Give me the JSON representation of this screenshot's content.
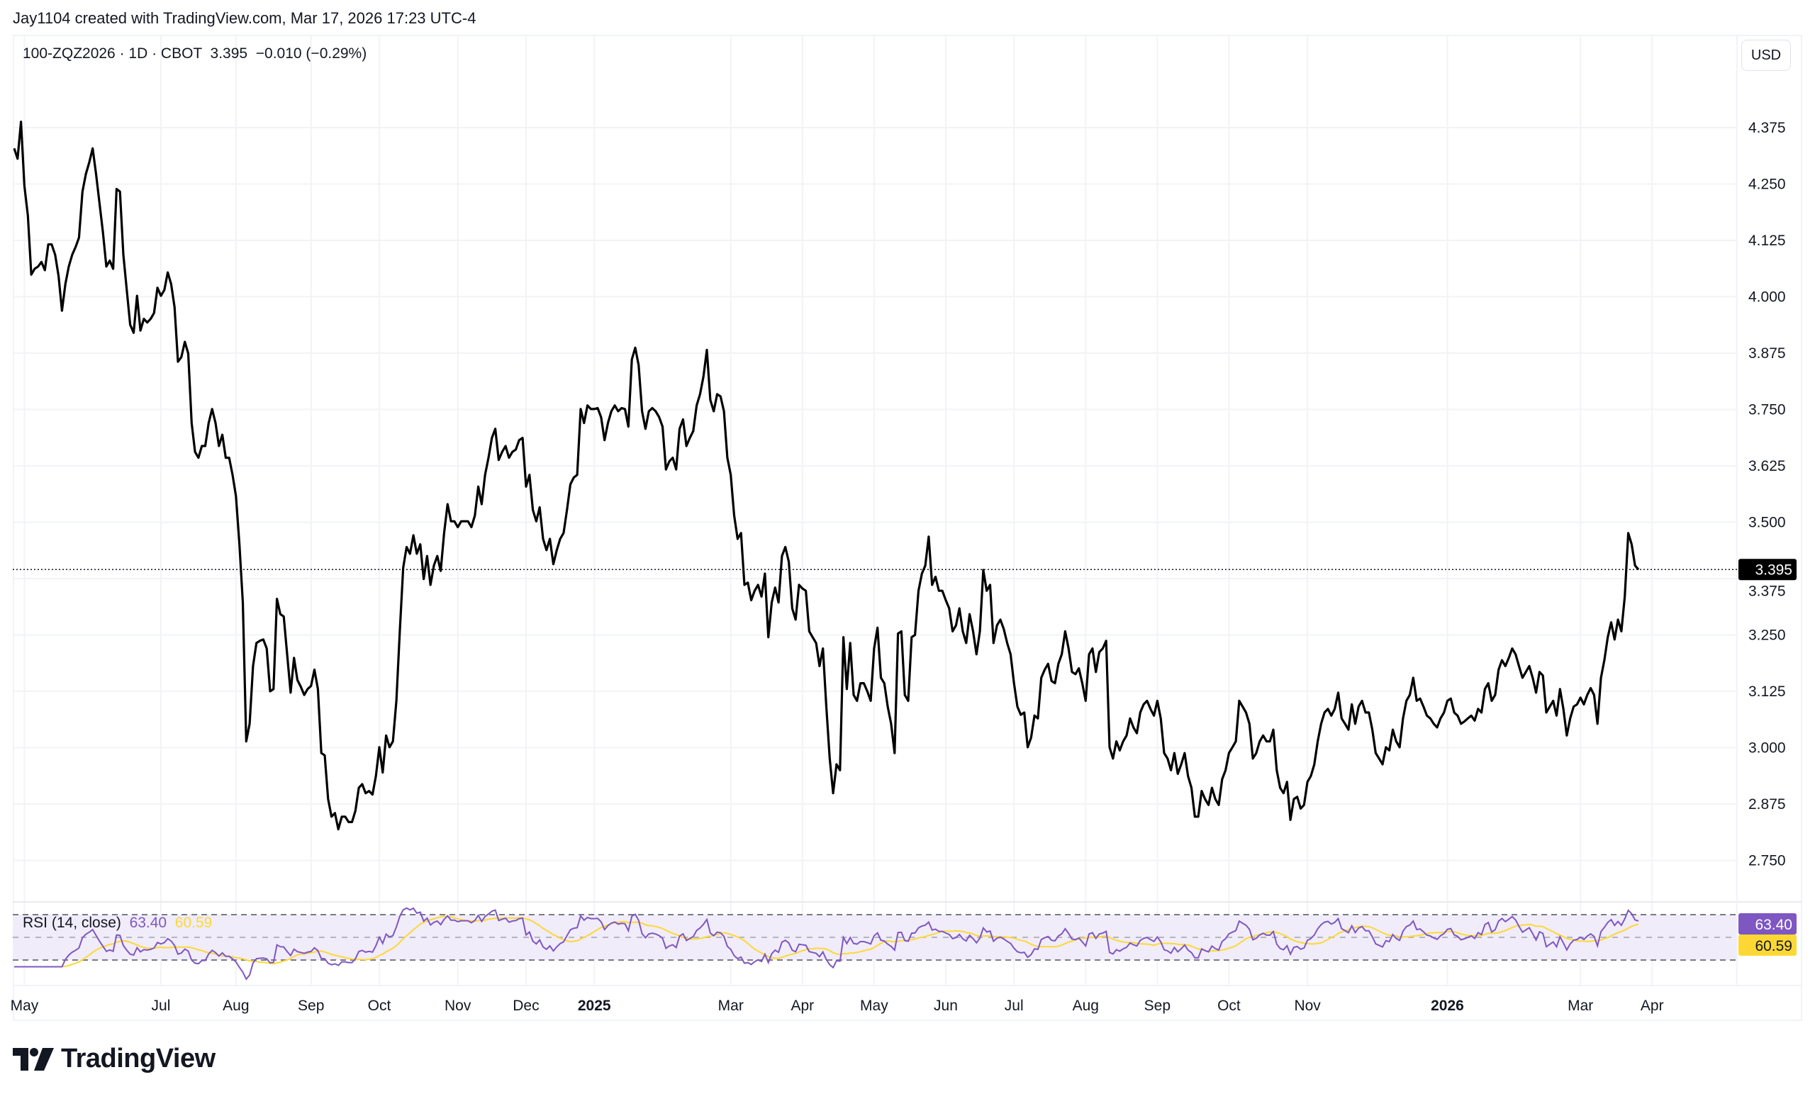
{
  "attribution": "Jay1104 created with TradingView.com, Mar 17, 2026 17:23 UTC-4",
  "legend": {
    "symbol": "100-ZQZ2026 · 1D · CBOT",
    "price": "3.395",
    "change": "−0.010 (−0.29%)"
  },
  "currency_button": "USD",
  "logo_text": "TradingView",
  "colors": {
    "price_line": "#000000",
    "rsi": "#7e57c2",
    "rsi_ma": "#fdd835",
    "rsi_band": "#f0ecf9",
    "grid": "#f2f3f6"
  },
  "chart_data": {
    "type": "line",
    "title": "100-ZQZ2026 · 1D · CBOT",
    "ylabel": "USD",
    "ylim": [
      2.7,
      4.42
    ],
    "grid": true,
    "y_ticks": [
      "4.375",
      "4.250",
      "4.125",
      "4.000",
      "3.875",
      "3.750",
      "3.625",
      "3.500",
      "3.375",
      "3.250",
      "3.125",
      "3.000",
      "2.875",
      "2.750"
    ],
    "last_price_label": "3.395",
    "last_price": 3.395,
    "x_ticks": [
      {
        "label": "May",
        "bar": 3
      },
      {
        "label": "Jul",
        "bar": 43
      },
      {
        "label": "Aug",
        "bar": 65
      },
      {
        "label": "Sep",
        "bar": 87
      },
      {
        "label": "Oct",
        "bar": 107
      },
      {
        "label": "Nov",
        "bar": 130
      },
      {
        "label": "Dec",
        "bar": 150
      },
      {
        "label": "2025",
        "bar": 170,
        "bold": true
      },
      {
        "label": "Mar",
        "bar": 210
      },
      {
        "label": "Apr",
        "bar": 231
      },
      {
        "label": "May",
        "bar": 252
      },
      {
        "label": "Jun",
        "bar": 273
      },
      {
        "label": "Jul",
        "bar": 293
      },
      {
        "label": "Aug",
        "bar": 314
      },
      {
        "label": "Sep",
        "bar": 335
      },
      {
        "label": "Oct",
        "bar": 356
      },
      {
        "label": "Nov",
        "bar": 379
      },
      {
        "label": "2026",
        "bar": 420,
        "bold": true
      },
      {
        "label": "Mar",
        "bar": 459
      },
      {
        "label": "Apr",
        "bar": 480
      }
    ],
    "series": [
      {
        "name": "Close",
        "values": [
          4.329,
          4.306,
          4.388,
          4.246,
          4.18,
          4.049,
          4.062,
          4.067,
          4.077,
          4.059,
          4.116,
          4.116,
          4.093,
          4.046,
          3.969,
          4.028,
          4.067,
          4.093,
          4.11,
          4.131,
          4.233,
          4.272,
          4.298,
          4.329,
          4.272,
          4.208,
          4.144,
          4.067,
          4.08,
          4.062,
          4.239,
          4.233,
          4.093,
          4.015,
          3.938,
          3.92,
          4.002,
          3.925,
          3.951,
          3.943,
          3.951,
          3.964,
          4.02,
          4.002,
          4.015,
          4.054,
          4.028,
          3.977,
          3.856,
          3.866,
          3.9,
          3.874,
          3.72,
          3.656,
          3.643,
          3.669,
          3.669,
          3.72,
          3.751,
          3.72,
          3.669,
          3.694,
          3.643,
          3.643,
          3.605,
          3.558,
          3.451,
          3.322,
          3.014,
          3.053,
          3.181,
          3.232,
          3.237,
          3.24,
          3.22,
          3.125,
          3.13,
          3.33,
          3.296,
          3.291,
          3.207,
          3.122,
          3.199,
          3.15,
          3.135,
          3.117,
          3.13,
          3.137,
          3.173,
          3.13,
          2.988,
          2.983,
          2.886,
          2.847,
          2.855,
          2.819,
          2.847,
          2.847,
          2.835,
          2.835,
          2.86,
          2.911,
          2.919,
          2.899,
          2.904,
          2.896,
          2.937,
          3.001,
          2.945,
          3.027,
          3.001,
          3.014,
          3.104,
          3.258,
          3.399,
          3.445,
          3.43,
          3.471,
          3.43,
          3.451,
          3.374,
          3.425,
          3.361,
          3.404,
          3.425,
          3.392,
          3.476,
          3.54,
          3.502,
          3.502,
          3.489,
          3.502,
          3.502,
          3.502,
          3.489,
          3.515,
          3.579,
          3.54,
          3.605,
          3.643,
          3.687,
          3.707,
          3.638,
          3.656,
          3.669,
          3.643,
          3.656,
          3.661,
          3.682,
          3.687,
          3.579,
          3.605,
          3.527,
          3.502,
          3.533,
          3.463,
          3.438,
          3.463,
          3.407,
          3.438,
          3.463,
          3.476,
          3.527,
          3.584,
          3.599,
          3.605,
          3.751,
          3.72,
          3.759,
          3.751,
          3.751,
          3.753,
          3.733,
          3.682,
          3.72,
          3.746,
          3.759,
          3.746,
          3.753,
          3.751,
          3.712,
          3.861,
          3.887,
          3.848,
          3.746,
          3.707,
          3.746,
          3.753,
          3.746,
          3.733,
          3.712,
          3.617,
          3.635,
          3.643,
          3.617,
          3.707,
          3.728,
          3.669,
          3.687,
          3.702,
          3.759,
          3.784,
          3.823,
          3.882,
          3.771,
          3.746,
          3.784,
          3.779,
          3.746,
          3.643,
          3.605,
          3.515,
          3.463,
          3.476,
          3.361,
          3.366,
          3.327,
          3.348,
          3.361,
          3.335,
          3.386,
          3.245,
          3.322,
          3.355,
          3.322,
          3.425,
          3.445,
          3.412,
          3.309,
          3.284,
          3.361,
          3.353,
          3.348,
          3.258,
          3.245,
          3.232,
          3.181,
          3.22,
          3.091,
          2.976,
          2.899,
          2.963,
          2.95,
          3.245,
          3.13,
          3.232,
          3.117,
          3.104,
          3.143,
          3.143,
          3.125,
          3.104,
          3.22,
          3.266,
          3.155,
          3.143,
          3.091,
          3.053,
          2.988,
          3.253,
          3.258,
          3.117,
          3.104,
          3.245,
          3.25,
          3.348,
          3.386,
          3.404,
          3.468,
          3.361,
          3.379,
          3.348,
          3.348,
          3.327,
          3.309,
          3.258,
          3.271,
          3.309,
          3.258,
          3.232,
          3.296,
          3.258,
          3.207,
          3.258,
          3.394,
          3.348,
          3.361,
          3.232,
          3.271,
          3.284,
          3.263,
          3.232,
          3.207,
          3.143,
          3.091,
          3.073,
          3.078,
          3.001,
          3.022,
          3.071,
          3.065,
          3.155,
          3.173,
          3.186,
          3.148,
          3.143,
          3.186,
          3.207,
          3.258,
          3.22,
          3.168,
          3.163,
          3.176,
          3.143,
          3.104,
          3.207,
          3.22,
          3.168,
          3.212,
          3.22,
          3.237,
          3.001,
          2.976,
          3.014,
          2.994,
          3.014,
          3.027,
          3.065,
          3.045,
          3.032,
          3.078,
          3.096,
          3.104,
          3.086,
          3.071,
          3.104,
          3.065,
          2.988,
          2.976,
          2.95,
          2.988,
          2.942,
          2.963,
          2.988,
          2.937,
          2.911,
          2.847,
          2.847,
          2.904,
          2.886,
          2.873,
          2.911,
          2.886,
          2.873,
          2.93,
          2.95,
          2.988,
          3.001,
          3.014,
          3.104,
          3.091,
          3.078,
          3.053,
          2.976,
          2.988,
          3.014,
          3.027,
          3.014,
          3.014,
          3.04,
          2.95,
          2.911,
          2.899,
          2.924,
          2.84,
          2.886,
          2.891,
          2.865,
          2.873,
          2.924,
          2.937,
          2.963,
          3.014,
          3.053,
          3.078,
          3.086,
          3.071,
          3.086,
          3.122,
          3.065,
          3.053,
          3.04,
          3.096,
          3.053,
          3.091,
          3.104,
          3.078,
          3.078,
          3.04,
          2.988,
          2.976,
          2.963,
          3.001,
          2.994,
          3.04,
          3.014,
          3.001,
          3.065,
          3.104,
          3.117,
          3.155,
          3.104,
          3.109,
          3.091,
          3.071,
          3.065,
          3.053,
          3.045,
          3.065,
          3.078,
          3.104,
          3.109,
          3.078,
          3.071,
          3.053,
          3.058,
          3.065,
          3.071,
          3.06,
          3.086,
          3.078,
          3.13,
          3.143,
          3.104,
          3.117,
          3.173,
          3.194,
          3.181,
          3.199,
          3.22,
          3.207,
          3.181,
          3.155,
          3.168,
          3.181,
          3.155,
          3.122,
          3.168,
          3.16,
          3.078,
          3.091,
          3.104,
          3.071,
          3.13,
          3.086,
          3.027,
          3.065,
          3.091,
          3.096,
          3.111,
          3.096,
          3.117,
          3.132,
          3.117,
          3.053,
          3.155,
          3.194,
          3.245,
          3.278,
          3.24,
          3.284,
          3.258,
          3.335,
          3.476,
          3.451,
          3.404,
          3.395
        ]
      }
    ],
    "indicator": {
      "name": "RSI (14, close)",
      "rsi_value": "63.40",
      "rsi_ma_value": "60.59",
      "upper_band": 70,
      "middle_band": 50,
      "lower_band": 30,
      "period": 14,
      "ma_period": 14
    }
  }
}
